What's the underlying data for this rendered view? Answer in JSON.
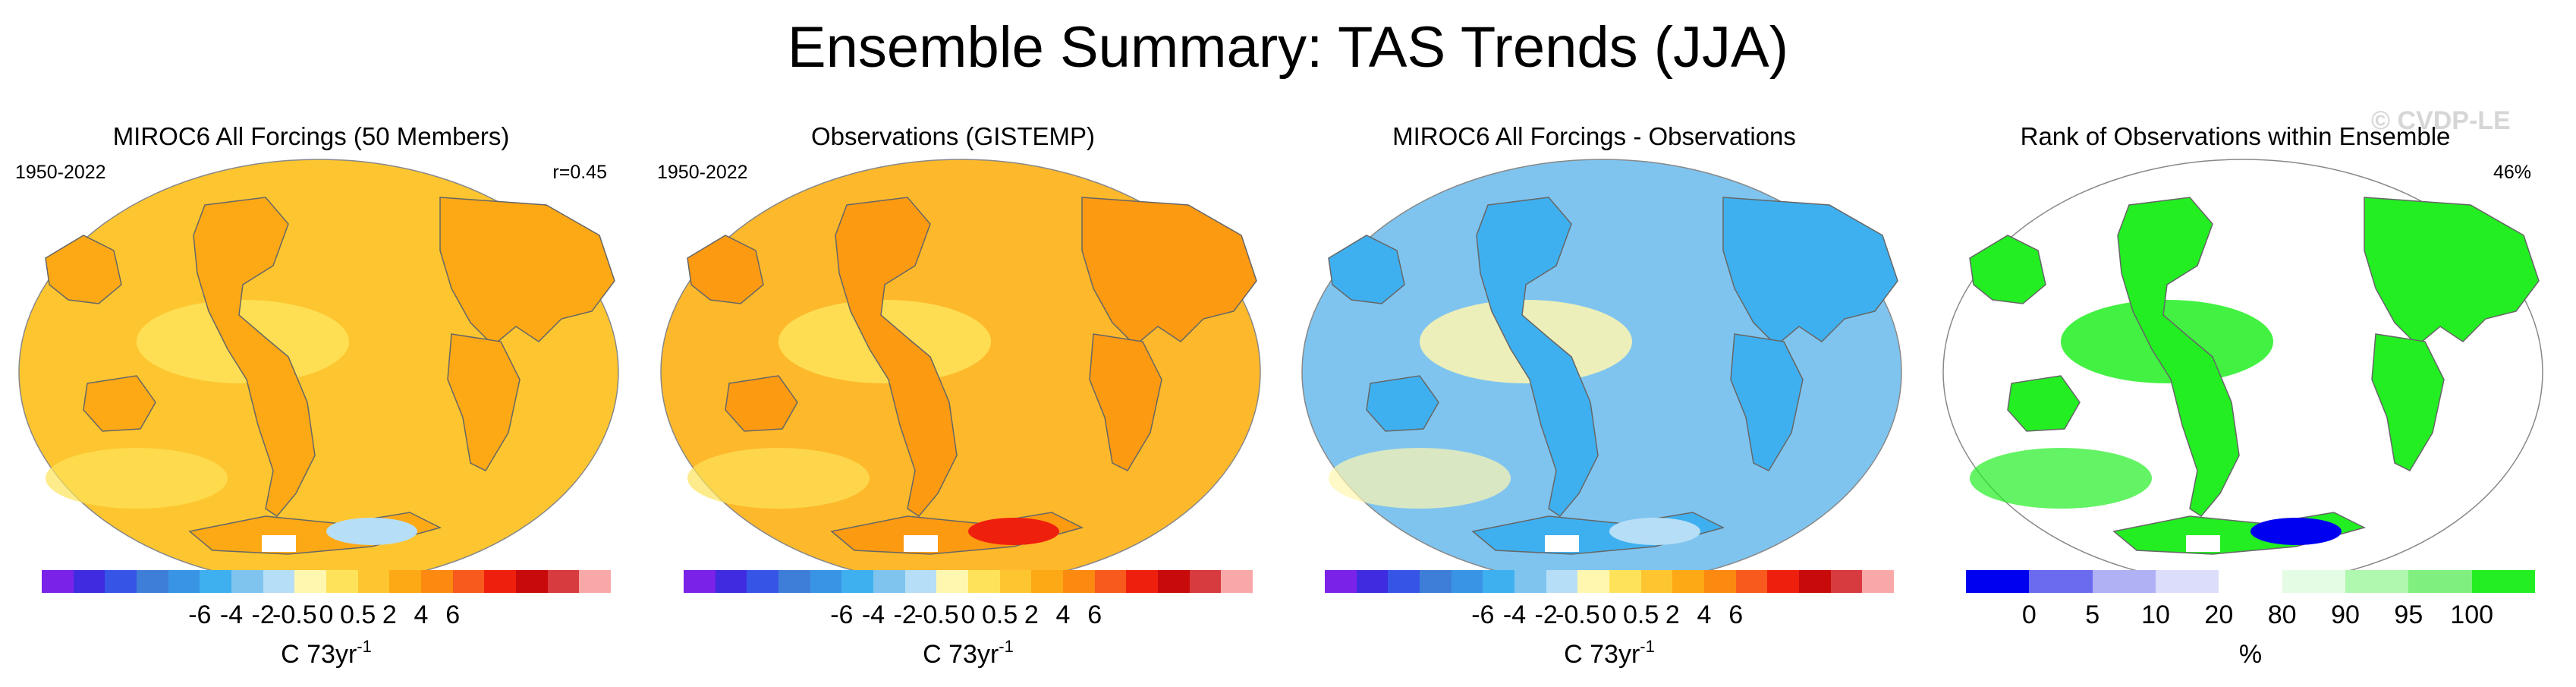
{
  "title": "Ensemble Summary: TAS Trends (JJA)",
  "watermark": "© CVDP-LE",
  "chart_data": [
    {
      "type": "heatmap",
      "title": "MIROC6 All Forcings (50 Members)",
      "title_color": "#1f6a8a",
      "left_label": "1950-2022",
      "right_label": "r=0.45",
      "colorbar_colors": [
        "#7b22e8",
        "#3f2be0",
        "#3655e6",
        "#3f7ed8",
        "#3a94e5",
        "#3fb0ef",
        "#7fc4ef",
        "#b6def6",
        "#fff7b0",
        "#fee35a",
        "#fdc630",
        "#fda915",
        "#fc8a10",
        "#f75a1c",
        "#ef1f0e",
        "#c80a0a",
        "#d73a3f",
        "#f9a8a8"
      ],
      "colorbar_ticks": [
        "-6",
        "-4",
        "-2",
        "-0.5",
        "0",
        "0.5",
        "2",
        "4",
        "6"
      ],
      "colorbar_units": "C 73yr",
      "colorbar_units_exponent": "-1",
      "dominant_value_bin": "0.5 to 2",
      "field_colors": {
        "ocean": "#fdc630",
        "land": "#fda915",
        "cool": "#fee35a",
        "patch": "#b6def6"
      }
    },
    {
      "type": "heatmap",
      "title": "Observations (GISTEMP)",
      "title_color": "#000000",
      "left_label": "1950-2022",
      "right_label": "",
      "colorbar_colors": [
        "#7b22e8",
        "#3f2be0",
        "#3655e6",
        "#3f7ed8",
        "#3a94e5",
        "#3fb0ef",
        "#7fc4ef",
        "#b6def6",
        "#fff7b0",
        "#fee35a",
        "#fdc630",
        "#fda915",
        "#fc8a10",
        "#f75a1c",
        "#ef1f0e",
        "#c80a0a",
        "#d73a3f",
        "#f9a8a8"
      ],
      "colorbar_ticks": [
        "-6",
        "-4",
        "-2",
        "-0.5",
        "0",
        "0.5",
        "2",
        "4",
        "6"
      ],
      "colorbar_units": "C 73yr",
      "colorbar_units_exponent": "-1",
      "dominant_value_bin": "0.5 to 2",
      "field_colors": {
        "ocean": "#fdb92b",
        "land": "#fc9a12",
        "cool": "#fee35a",
        "patch": "#ef1f0e"
      }
    },
    {
      "type": "heatmap",
      "title": "MIROC6 All Forcings - Observations",
      "title_color": "#000000",
      "left_label": "",
      "right_label": "",
      "colorbar_colors": [
        "#7b22e8",
        "#3f2be0",
        "#3655e6",
        "#3f7ed8",
        "#3a94e5",
        "#3fb0ef",
        "#7fc4ef",
        "#b6def6",
        "#fff7b0",
        "#fee35a",
        "#fdc630",
        "#fda915",
        "#fc8a10",
        "#f75a1c",
        "#ef1f0e",
        "#c80a0a",
        "#d73a3f",
        "#f9a8a8"
      ],
      "colorbar_ticks": [
        "-6",
        "-4",
        "-2",
        "-0.5",
        "0",
        "0.5",
        "2",
        "4",
        "6"
      ],
      "colorbar_units": "C 73yr",
      "colorbar_units_exponent": "-1",
      "dominant_value_bin": "-2 to -0.5",
      "field_colors": {
        "ocean": "#7fc4ef",
        "land": "#3fb0ef",
        "cool": "#fff7b0",
        "patch": "#b6def6"
      }
    },
    {
      "type": "heatmap",
      "title": "Rank of Observations within Ensemble",
      "title_color": "#000000",
      "left_label": "",
      "right_label": "46%",
      "colorbar_colors": [
        "#0000f0",
        "#6b6bf0",
        "#b0b0f5",
        "#dcdcfb",
        "#ffffff",
        "#e4fbe4",
        "#b0f7b0",
        "#7ff07f",
        "#22ee22"
      ],
      "colorbar_ticks": [
        "0",
        "5",
        "10",
        "20",
        "80",
        "90",
        "95",
        "100"
      ],
      "colorbar_units": "%",
      "colorbar_units_exponent": "",
      "dominant_value_bin": "20 to 80",
      "field_colors": {
        "ocean": "#ffffff",
        "land": "#22ee22",
        "cool": "#22ee22",
        "patch": "#0000f0"
      }
    }
  ]
}
